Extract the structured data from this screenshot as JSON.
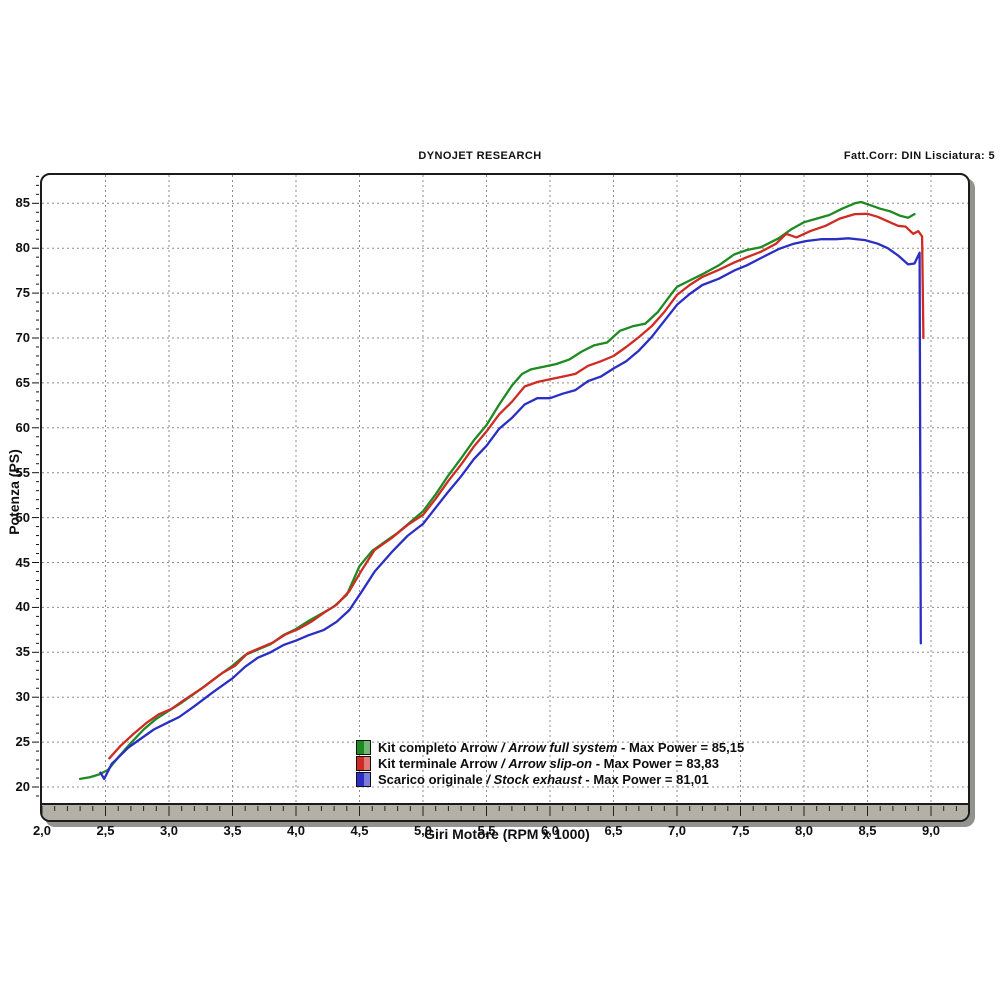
{
  "header": {
    "title": "DYNOJET RESEARCH",
    "correction": "Fatt.Corr: DIN  Lisciatura: 5"
  },
  "legend": {
    "separator": "/",
    "max_power_label": "- Max Power ="
  },
  "chart_data": {
    "type": "line",
    "title": "DYNOJET RESEARCH",
    "xlabel": "Giri Motore (RPM x 1000)",
    "ylabel": "Potenza (PS)",
    "xlim": [
      2.0,
      9.3
    ],
    "ylim": [
      18.0,
      88.1
    ],
    "x_ticks": [
      2.0,
      2.5,
      3.0,
      3.5,
      4.0,
      4.5,
      5.0,
      5.5,
      6.0,
      6.5,
      7.0,
      7.5,
      8.0,
      8.5,
      9.0
    ],
    "x_tick_labels": [
      "2,0",
      "2,5",
      "3,0",
      "3,5",
      "4,0",
      "4,5",
      "5,0",
      "5,5",
      "6,0",
      "6,5",
      "7,0",
      "7,5",
      "8,0",
      "8,5",
      "9,0"
    ],
    "x_minor_tick_step": 0.1,
    "y_ticks": [
      20,
      25,
      30,
      35,
      40,
      45,
      50,
      55,
      60,
      65,
      70,
      75,
      80,
      85
    ],
    "y_tick_labels": [
      "20",
      "25",
      "30",
      "35",
      "40",
      "45",
      "50",
      "55",
      "60",
      "65",
      "70",
      "75",
      "80",
      "85"
    ],
    "y_minor_tick_step": 1,
    "grid": "dashed",
    "grid_color": "#8c8c8c",
    "axis_strip_color": "#b3b0a7",
    "legend_position": "bottom-center-inside",
    "series": [
      {
        "name_it": "Kit completo Arrow",
        "name_en": "Arrow full system",
        "max_power": "85,15",
        "color": "#1e8a22",
        "points": [
          [
            2.3,
            20.9
          ],
          [
            2.38,
            21.1
          ],
          [
            2.45,
            21.4
          ],
          [
            2.52,
            21.9
          ],
          [
            2.6,
            23.3
          ],
          [
            2.7,
            24.9
          ],
          [
            2.8,
            26.4
          ],
          [
            2.9,
            27.6
          ],
          [
            3.0,
            28.5
          ],
          [
            3.1,
            29.4
          ],
          [
            3.25,
            30.9
          ],
          [
            3.4,
            32.5
          ],
          [
            3.5,
            33.5
          ],
          [
            3.6,
            34.7
          ],
          [
            3.7,
            35.3
          ],
          [
            3.8,
            35.9
          ],
          [
            3.9,
            36.9
          ],
          [
            4.0,
            37.6
          ],
          [
            4.1,
            38.5
          ],
          [
            4.2,
            39.3
          ],
          [
            4.3,
            40.1
          ],
          [
            4.4,
            41.4
          ],
          [
            4.5,
            44.6
          ],
          [
            4.6,
            46.3
          ],
          [
            4.7,
            47.3
          ],
          [
            4.8,
            48.3
          ],
          [
            4.9,
            49.5
          ],
          [
            5.0,
            50.7
          ],
          [
            5.1,
            52.6
          ],
          [
            5.2,
            54.7
          ],
          [
            5.3,
            56.6
          ],
          [
            5.4,
            58.6
          ],
          [
            5.5,
            60.3
          ],
          [
            5.6,
            62.6
          ],
          [
            5.7,
            64.7
          ],
          [
            5.78,
            66.0
          ],
          [
            5.85,
            66.5
          ],
          [
            5.95,
            66.8
          ],
          [
            6.05,
            67.1
          ],
          [
            6.15,
            67.6
          ],
          [
            6.25,
            68.5
          ],
          [
            6.35,
            69.2
          ],
          [
            6.45,
            69.5
          ],
          [
            6.55,
            70.8
          ],
          [
            6.65,
            71.3
          ],
          [
            6.75,
            71.6
          ],
          [
            6.85,
            72.9
          ],
          [
            6.95,
            74.8
          ],
          [
            7.0,
            75.7
          ],
          [
            7.1,
            76.4
          ],
          [
            7.2,
            77.1
          ],
          [
            7.33,
            78.1
          ],
          [
            7.45,
            79.3
          ],
          [
            7.55,
            79.8
          ],
          [
            7.66,
            80.1
          ],
          [
            7.8,
            81.1
          ],
          [
            7.9,
            82.1
          ],
          [
            8.0,
            82.9
          ],
          [
            8.1,
            83.3
          ],
          [
            8.2,
            83.7
          ],
          [
            8.3,
            84.4
          ],
          [
            8.4,
            85.0
          ],
          [
            8.45,
            85.15
          ],
          [
            8.52,
            84.8
          ],
          [
            8.6,
            84.4
          ],
          [
            8.68,
            84.1
          ],
          [
            8.76,
            83.6
          ],
          [
            8.82,
            83.4
          ],
          [
            8.87,
            83.8
          ]
        ]
      },
      {
        "name_it": "Kit terminale Arrow",
        "name_en": "Arrow slip-on",
        "max_power": "83,83",
        "color": "#cf2b24",
        "points": [
          [
            2.53,
            23.2
          ],
          [
            2.62,
            24.6
          ],
          [
            2.72,
            25.9
          ],
          [
            2.82,
            27.1
          ],
          [
            2.92,
            28.1
          ],
          [
            3.02,
            28.7
          ],
          [
            3.12,
            29.7
          ],
          [
            3.27,
            31.1
          ],
          [
            3.42,
            32.7
          ],
          [
            3.52,
            33.5
          ],
          [
            3.62,
            34.9
          ],
          [
            3.72,
            35.5
          ],
          [
            3.82,
            36.1
          ],
          [
            3.92,
            37.0
          ],
          [
            4.02,
            37.6
          ],
          [
            4.12,
            38.4
          ],
          [
            4.22,
            39.4
          ],
          [
            4.32,
            40.3
          ],
          [
            4.42,
            41.8
          ],
          [
            4.52,
            44.2
          ],
          [
            4.62,
            46.4
          ],
          [
            4.75,
            47.7
          ],
          [
            4.88,
            49.2
          ],
          [
            5.0,
            50.3
          ],
          [
            5.1,
            52.1
          ],
          [
            5.2,
            54.1
          ],
          [
            5.3,
            55.9
          ],
          [
            5.4,
            57.9
          ],
          [
            5.5,
            59.6
          ],
          [
            5.6,
            61.5
          ],
          [
            5.7,
            62.9
          ],
          [
            5.8,
            64.6
          ],
          [
            5.9,
            65.1
          ],
          [
            6.0,
            65.4
          ],
          [
            6.1,
            65.7
          ],
          [
            6.2,
            66.0
          ],
          [
            6.3,
            66.9
          ],
          [
            6.4,
            67.4
          ],
          [
            6.5,
            68.0
          ],
          [
            6.6,
            69.0
          ],
          [
            6.7,
            70.1
          ],
          [
            6.8,
            71.3
          ],
          [
            6.9,
            72.9
          ],
          [
            7.0,
            74.8
          ],
          [
            7.1,
            75.9
          ],
          [
            7.2,
            76.8
          ],
          [
            7.33,
            77.6
          ],
          [
            7.45,
            78.4
          ],
          [
            7.55,
            79.0
          ],
          [
            7.66,
            79.6
          ],
          [
            7.78,
            80.5
          ],
          [
            7.86,
            81.6
          ],
          [
            7.94,
            81.2
          ],
          [
            8.05,
            81.9
          ],
          [
            8.17,
            82.5
          ],
          [
            8.28,
            83.3
          ],
          [
            8.4,
            83.8
          ],
          [
            8.5,
            83.83
          ],
          [
            8.58,
            83.5
          ],
          [
            8.66,
            83.0
          ],
          [
            8.74,
            82.5
          ],
          [
            8.8,
            82.4
          ],
          [
            8.86,
            81.6
          ],
          [
            8.9,
            81.9
          ],
          [
            8.93,
            81.3
          ],
          [
            8.94,
            70.0
          ]
        ]
      },
      {
        "name_it": "Scarico originale",
        "name_en": "Stock exhaust",
        "max_power": "81,01",
        "color": "#2a2ec4",
        "points": [
          [
            2.46,
            21.6
          ],
          [
            2.49,
            20.9
          ],
          [
            2.55,
            22.6
          ],
          [
            2.58,
            23.0
          ],
          [
            2.68,
            24.4
          ],
          [
            2.78,
            25.4
          ],
          [
            2.88,
            26.4
          ],
          [
            2.98,
            27.1
          ],
          [
            3.08,
            27.8
          ],
          [
            3.2,
            29.0
          ],
          [
            3.35,
            30.6
          ],
          [
            3.5,
            32.1
          ],
          [
            3.6,
            33.4
          ],
          [
            3.7,
            34.4
          ],
          [
            3.8,
            35.0
          ],
          [
            3.9,
            35.8
          ],
          [
            4.0,
            36.3
          ],
          [
            4.1,
            36.9
          ],
          [
            4.22,
            37.5
          ],
          [
            4.32,
            38.4
          ],
          [
            4.42,
            39.7
          ],
          [
            4.52,
            41.8
          ],
          [
            4.62,
            44.0
          ],
          [
            4.75,
            46.1
          ],
          [
            4.88,
            48.0
          ],
          [
            5.0,
            49.3
          ],
          [
            5.1,
            51.1
          ],
          [
            5.2,
            52.9
          ],
          [
            5.3,
            54.6
          ],
          [
            5.4,
            56.5
          ],
          [
            5.5,
            58.0
          ],
          [
            5.6,
            59.9
          ],
          [
            5.7,
            61.1
          ],
          [
            5.8,
            62.6
          ],
          [
            5.9,
            63.3
          ],
          [
            6.0,
            63.3
          ],
          [
            6.1,
            63.8
          ],
          [
            6.2,
            64.2
          ],
          [
            6.3,
            65.2
          ],
          [
            6.4,
            65.7
          ],
          [
            6.5,
            66.6
          ],
          [
            6.6,
            67.4
          ],
          [
            6.7,
            68.6
          ],
          [
            6.8,
            70.1
          ],
          [
            6.9,
            71.9
          ],
          [
            7.0,
            73.7
          ],
          [
            7.1,
            74.9
          ],
          [
            7.2,
            75.9
          ],
          [
            7.33,
            76.6
          ],
          [
            7.45,
            77.5
          ],
          [
            7.55,
            78.1
          ],
          [
            7.66,
            78.9
          ],
          [
            7.8,
            79.9
          ],
          [
            7.92,
            80.5
          ],
          [
            8.02,
            80.8
          ],
          [
            8.14,
            81.01
          ],
          [
            8.25,
            81.0
          ],
          [
            8.35,
            81.1
          ],
          [
            8.48,
            80.9
          ],
          [
            8.58,
            80.5
          ],
          [
            8.66,
            80.0
          ],
          [
            8.74,
            79.2
          ],
          [
            8.82,
            78.2
          ],
          [
            8.87,
            78.3
          ],
          [
            8.91,
            79.5
          ],
          [
            8.92,
            36.0
          ]
        ]
      }
    ]
  }
}
